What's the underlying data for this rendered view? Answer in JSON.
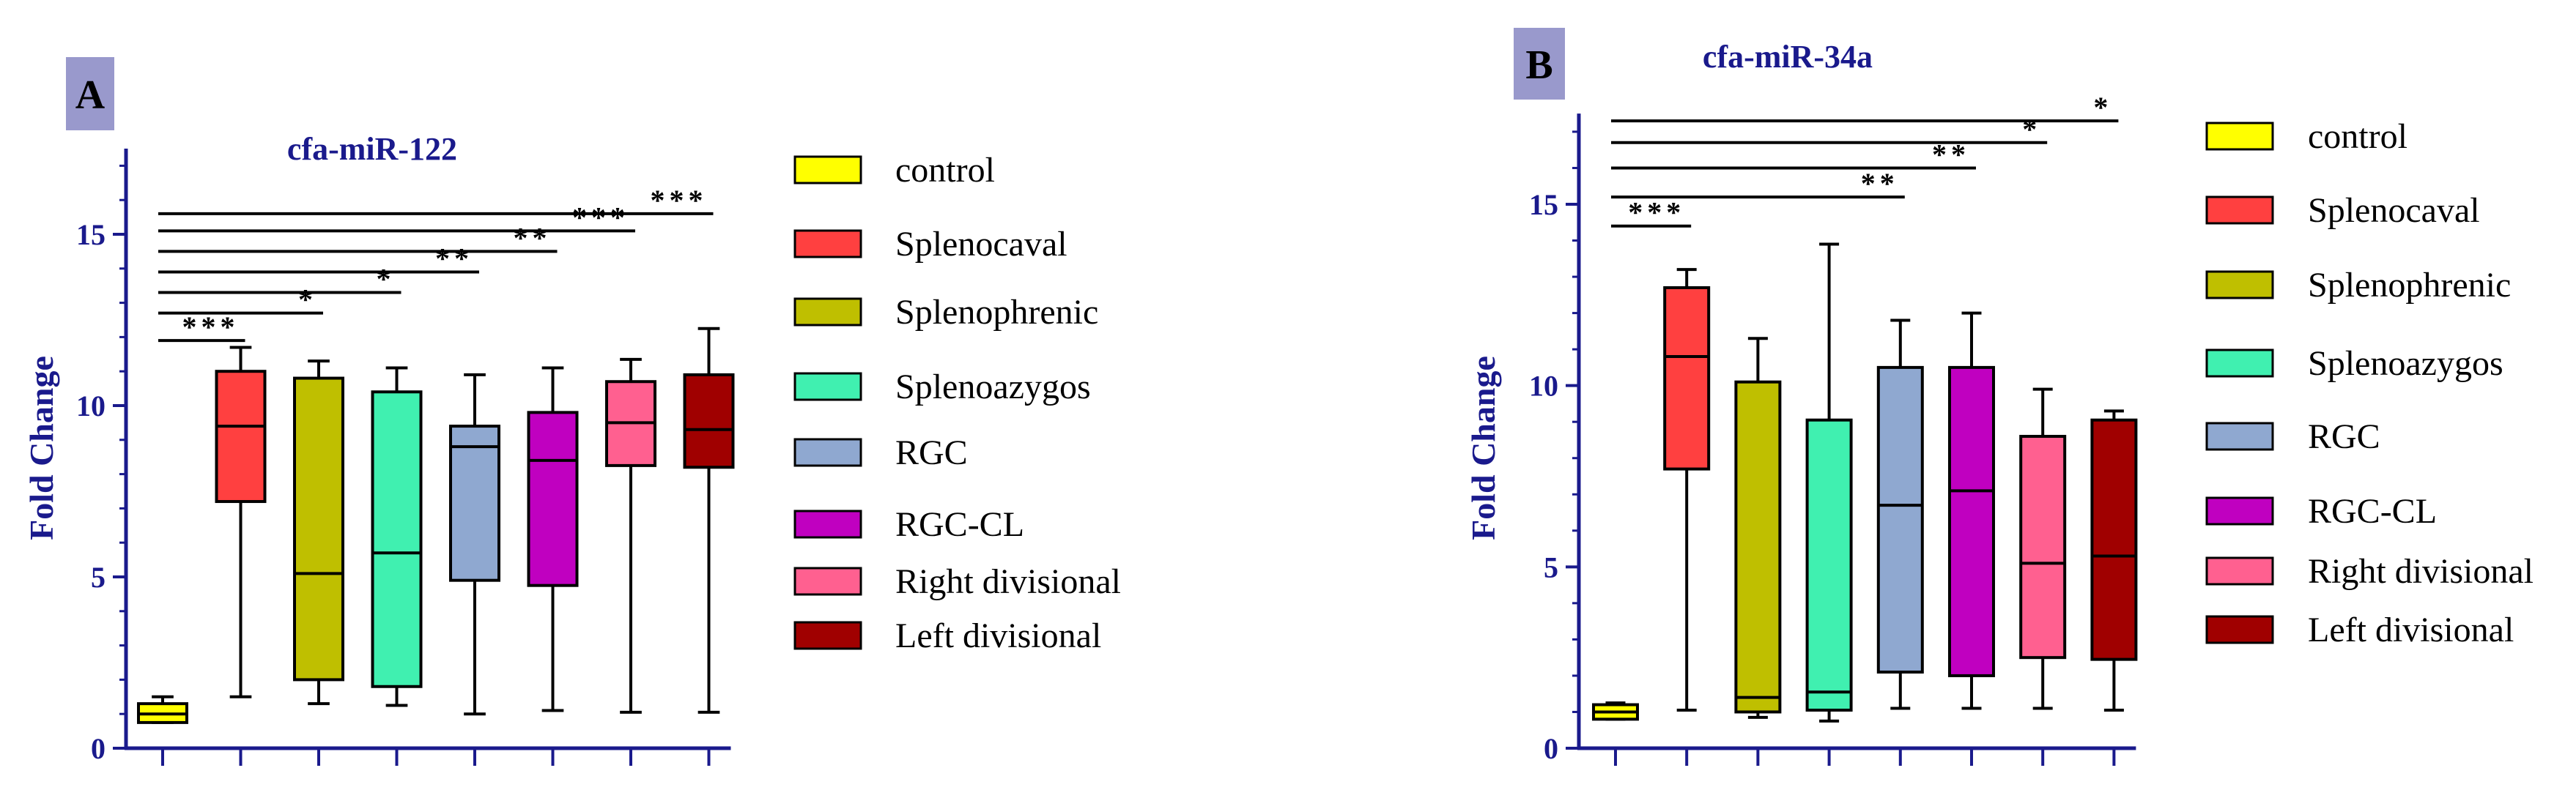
{
  "chart_data": [
    {
      "type": "box",
      "panel_label": "A",
      "title": "cfa-miR-122",
      "ylabel": "Fold Change",
      "xlabel": "",
      "ylim": [
        0,
        17.5
      ],
      "yticks": [
        0,
        5,
        10,
        15
      ],
      "categories": [
        "control",
        "Splenocaval",
        "Splenophrenic",
        "Splenoazygos",
        "RGC",
        "RGC-CL",
        "Right divisional",
        "Left divisional"
      ],
      "colors": [
        "#ffff00",
        "#ff4040",
        "#bfbf00",
        "#40f0b0",
        "#8fa8d0",
        "#c000c0",
        "#ff6090",
        "#a00000"
      ],
      "boxes": [
        {
          "min": 0.75,
          "q1": 0.75,
          "median": 1.0,
          "q3": 1.3,
          "max": 1.5
        },
        {
          "min": 1.5,
          "q1": 7.2,
          "median": 9.4,
          "q3": 11.0,
          "max": 11.7
        },
        {
          "min": 1.3,
          "q1": 2.0,
          "median": 5.1,
          "q3": 10.8,
          "max": 11.3
        },
        {
          "min": 1.25,
          "q1": 1.8,
          "median": 5.7,
          "q3": 10.4,
          "max": 11.1
        },
        {
          "min": 1.0,
          "q1": 4.9,
          "median": 8.8,
          "q3": 9.4,
          "max": 10.9
        },
        {
          "min": 1.1,
          "q1": 4.75,
          "median": 8.4,
          "q3": 9.8,
          "max": 11.1
        },
        {
          "min": 1.05,
          "q1": 8.25,
          "median": 9.5,
          "q3": 10.7,
          "max": 11.35
        },
        {
          "min": 1.05,
          "q1": 8.2,
          "median": 9.3,
          "q3": 10.9,
          "max": 12.25
        }
      ],
      "significance": [
        {
          "to": 1,
          "label": "***",
          "y": 11.9
        },
        {
          "to": 2,
          "label": "*",
          "y": 12.7
        },
        {
          "to": 3,
          "label": "*",
          "y": 13.3
        },
        {
          "to": 4,
          "label": "**",
          "y": 13.9
        },
        {
          "to": 5,
          "label": "**",
          "y": 14.5
        },
        {
          "to": 6,
          "label": "***",
          "y": 15.1
        },
        {
          "to": 7,
          "label": "***",
          "y": 15.6
        }
      ]
    },
    {
      "type": "box",
      "panel_label": "B",
      "title": "cfa-miR-34a",
      "ylabel": "Fold Change",
      "xlabel": "",
      "ylim": [
        0,
        17.5
      ],
      "yticks": [
        0,
        5,
        10,
        15
      ],
      "categories": [
        "control",
        "Splenocaval",
        "Splenophrenic",
        "Splenoazygos",
        "RGC",
        "RGC-CL",
        "Right divisional",
        "Left divisional"
      ],
      "colors": [
        "#ffff00",
        "#ff4040",
        "#bfbf00",
        "#40f0b0",
        "#8fa8d0",
        "#c000c0",
        "#ff6090",
        "#a00000"
      ],
      "boxes": [
        {
          "min": 0.8,
          "q1": 0.8,
          "median": 1.0,
          "q3": 1.2,
          "max": 1.25
        },
        {
          "min": 1.05,
          "q1": 7.7,
          "median": 10.8,
          "q3": 12.7,
          "max": 13.2
        },
        {
          "min": 0.85,
          "q1": 1.0,
          "median": 1.4,
          "q3": 10.1,
          "max": 11.3
        },
        {
          "min": 0.75,
          "q1": 1.05,
          "median": 1.55,
          "q3": 9.05,
          "max": 13.9
        },
        {
          "min": 1.1,
          "q1": 2.1,
          "median": 6.7,
          "q3": 10.5,
          "max": 11.8
        },
        {
          "min": 1.1,
          "q1": 2.0,
          "median": 7.1,
          "q3": 10.5,
          "max": 12.0
        },
        {
          "min": 1.1,
          "q1": 2.5,
          "median": 5.1,
          "q3": 8.6,
          "max": 9.9
        },
        {
          "min": 1.05,
          "q1": 2.45,
          "median": 5.3,
          "q3": 9.05,
          "max": 9.3
        }
      ],
      "significance": [
        {
          "to": 1,
          "label": "***",
          "y": 14.4
        },
        {
          "to": 4,
          "label": "**",
          "y": 15.2
        },
        {
          "to": 5,
          "label": "**",
          "y": 16.0
        },
        {
          "to": 6,
          "label": "*",
          "y": 16.7
        },
        {
          "to": 7,
          "label": "*",
          "y": 17.3
        }
      ]
    }
  ]
}
